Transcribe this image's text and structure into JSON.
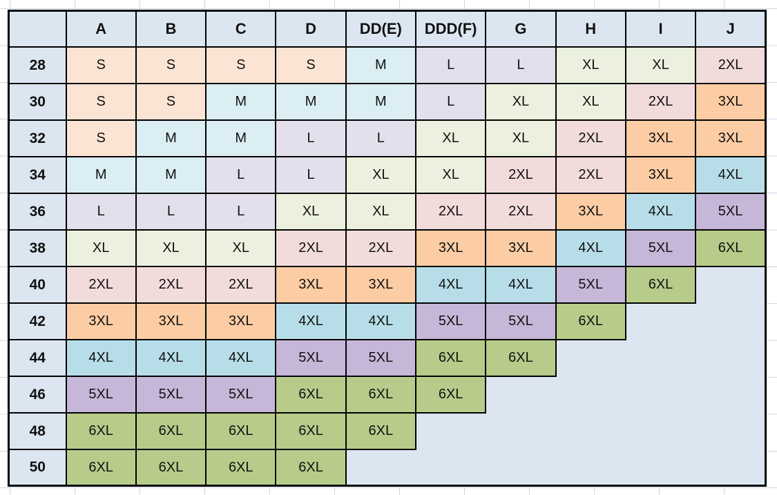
{
  "colors": {
    "header_fill": "#dce6f1",
    "empty_fill": "#dce6f1",
    "border": "#000000",
    "gridline": "#ccd6e4",
    "text": "#111111",
    "size_fills": {
      "S": "#fce4d4",
      "M": "#daeef3",
      "L": "#e4dfec",
      "XL": "#ebf1de",
      "2XL": "#f2dcdb",
      "3XL": "#fccda4",
      "4XL": "#b7dee8",
      "5XL": "#c6b7d8",
      "6XL": "#b7cc8a"
    }
  },
  "chart_data": {
    "type": "table",
    "corner_label": "",
    "columns": [
      "A",
      "B",
      "C",
      "D",
      "DD(E)",
      "DDD(F)",
      "G",
      "H",
      "I",
      "J"
    ],
    "rows": [
      {
        "band": "28",
        "cells": [
          "S",
          "S",
          "S",
          "S",
          "M",
          "L",
          "L",
          "XL",
          "XL",
          "2XL"
        ]
      },
      {
        "band": "30",
        "cells": [
          "S",
          "S",
          "M",
          "M",
          "M",
          "L",
          "XL",
          "XL",
          "2XL",
          "3XL"
        ]
      },
      {
        "band": "32",
        "cells": [
          "S",
          "M",
          "M",
          "L",
          "L",
          "XL",
          "XL",
          "2XL",
          "3XL",
          "3XL"
        ]
      },
      {
        "band": "34",
        "cells": [
          "M",
          "M",
          "L",
          "L",
          "XL",
          "XL",
          "2XL",
          "2XL",
          "3XL",
          "4XL"
        ]
      },
      {
        "band": "36",
        "cells": [
          "L",
          "L",
          "L",
          "XL",
          "XL",
          "2XL",
          "2XL",
          "3XL",
          "4XL",
          "5XL"
        ]
      },
      {
        "band": "38",
        "cells": [
          "XL",
          "XL",
          "XL",
          "2XL",
          "2XL",
          "3XL",
          "3XL",
          "4XL",
          "5XL",
          "6XL"
        ]
      },
      {
        "band": "40",
        "cells": [
          "2XL",
          "2XL",
          "2XL",
          "3XL",
          "3XL",
          "4XL",
          "4XL",
          "5XL",
          "6XL",
          ""
        ]
      },
      {
        "band": "42",
        "cells": [
          "3XL",
          "3XL",
          "3XL",
          "4XL",
          "4XL",
          "5XL",
          "5XL",
          "6XL",
          "",
          ""
        ]
      },
      {
        "band": "44",
        "cells": [
          "4XL",
          "4XL",
          "4XL",
          "5XL",
          "5XL",
          "6XL",
          "6XL",
          "",
          "",
          ""
        ]
      },
      {
        "band": "46",
        "cells": [
          "5XL",
          "5XL",
          "5XL",
          "6XL",
          "6XL",
          "6XL",
          "",
          "",
          "",
          ""
        ]
      },
      {
        "band": "48",
        "cells": [
          "6XL",
          "6XL",
          "6XL",
          "6XL",
          "6XL",
          "",
          "",
          "",
          "",
          ""
        ]
      },
      {
        "band": "50",
        "cells": [
          "6XL",
          "6XL",
          "6XL",
          "6XL",
          "",
          "",
          "",
          "",
          "",
          ""
        ]
      }
    ]
  }
}
